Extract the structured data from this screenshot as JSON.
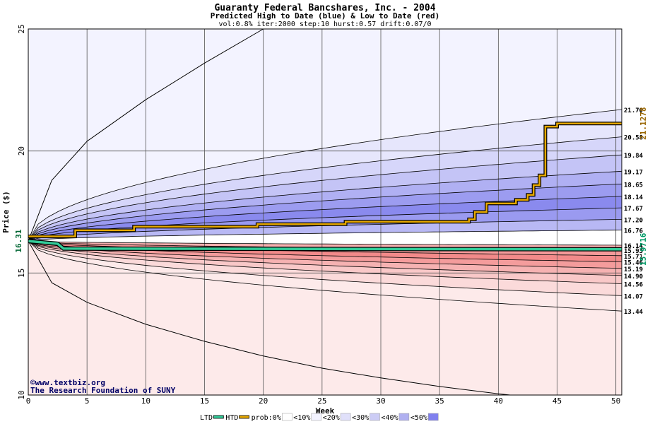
{
  "chart_data": {
    "type": "area",
    "title": "Guaranty Federal Bancshares, Inc. - 2004",
    "subtitle": "Predicted High to Date (blue) &  Low to Date (red)",
    "params": "vol:0.8% iter:2000 step:10 hurst:0.57 drift:0.07/0",
    "xlabel": "Week",
    "ylabel": "Price ($)",
    "xlim": [
      0,
      50.5
    ],
    "ylim": [
      10,
      25
    ],
    "x_ticks": [
      0,
      5,
      10,
      15,
      20,
      25,
      30,
      35,
      40,
      45,
      50
    ],
    "y_ticks": [
      10,
      15,
      20,
      25
    ],
    "grid": true,
    "start_price": "16.31",
    "start_value": 16.31,
    "high_band_labels": [
      "21.70",
      "20.58",
      "19.84",
      "19.17",
      "18.65",
      "18.14",
      "17.67",
      "17.20",
      "16.76"
    ],
    "high_band_values": [
      21.7,
      20.58,
      19.84,
      19.17,
      18.65,
      18.14,
      17.67,
      17.2,
      16.76
    ],
    "low_band_labels": [
      "16.14",
      "15.93",
      "15.71",
      "15.46",
      "15.19",
      "14.90",
      "14.56",
      "14.07",
      "13.44"
    ],
    "low_band_values": [
      16.14,
      15.93,
      15.71,
      15.46,
      15.19,
      14.9,
      14.56,
      14.07,
      13.44
    ],
    "outer_high_path": [
      [
        0,
        16.31
      ],
      [
        2,
        18.8
      ],
      [
        5,
        20.4
      ],
      [
        10,
        22.1
      ],
      [
        15,
        23.6
      ],
      [
        20,
        25.0
      ]
    ],
    "outer_low_path": [
      [
        0,
        16.31
      ],
      [
        2,
        14.6
      ],
      [
        5,
        13.8
      ],
      [
        10,
        12.9
      ],
      [
        15,
        12.2
      ],
      [
        20,
        11.6
      ],
      [
        25,
        11.1
      ],
      [
        30,
        10.7
      ],
      [
        35,
        10.35
      ],
      [
        40,
        10.05
      ],
      [
        41,
        10.0
      ]
    ],
    "htd_series_name": "HTD",
    "htd_end_label": "21.1278",
    "htd_path": [
      [
        0,
        16.5
      ],
      [
        3.5,
        16.5
      ],
      [
        4,
        16.75
      ],
      [
        9,
        16.9
      ],
      [
        19.5,
        17.0
      ],
      [
        27,
        17.1
      ],
      [
        37.5,
        17.2
      ],
      [
        38,
        17.5
      ],
      [
        39,
        17.85
      ],
      [
        41.5,
        18.0
      ],
      [
        42.5,
        18.2
      ],
      [
        43,
        18.6
      ],
      [
        43.5,
        19.0
      ],
      [
        44,
        21.0
      ],
      [
        45,
        21.1278
      ],
      [
        50.5,
        21.1278
      ]
    ],
    "ltd_series_name": "LTD",
    "ltd_end_label": "15.9716",
    "ltd_path": [
      [
        0,
        16.31
      ],
      [
        2.5,
        16.2
      ],
      [
        3,
        16.0
      ],
      [
        50.5,
        15.9716
      ]
    ],
    "legend": [
      {
        "label": "LTD",
        "color": "#33cc99"
      },
      {
        "label": "HTD",
        "color": "#e6a800"
      },
      {
        "label": "prob:0%",
        "color": "#ffffff"
      },
      {
        "label": "<10%",
        "color": "#f3f3ff"
      },
      {
        "label": "<20%",
        "color": "#e0e0fa"
      },
      {
        "label": "<30%",
        "color": "#ccccf5"
      },
      {
        "label": "<40%",
        "color": "#b0b0f0"
      },
      {
        "label": "<50%",
        "color": "#8080ee"
      }
    ],
    "colors": {
      "blue_bands": [
        "#f3f3ff",
        "#e6e6fc",
        "#d6d6fa",
        "#c4c4f6",
        "#b0b0f3",
        "#9c9cf0",
        "#8a8aee",
        "#9a9af0",
        "#b8b8f4"
      ],
      "red_bands": [
        "#fdeaea",
        "#fbdada",
        "#f9c8c8",
        "#f6b2b2",
        "#f49c9c",
        "#f28a8a",
        "#f49a9a",
        "#f7b0b0",
        "#fad0d0"
      ],
      "htd": "#e6a800",
      "ltd": "#33cc99",
      "start_label": "#006633",
      "htd_label": "#996600",
      "ltd_label": "#009966"
    }
  },
  "watermark": {
    "site": "www.textbiz.org",
    "org": "The Research Foundation of SUNY"
  }
}
